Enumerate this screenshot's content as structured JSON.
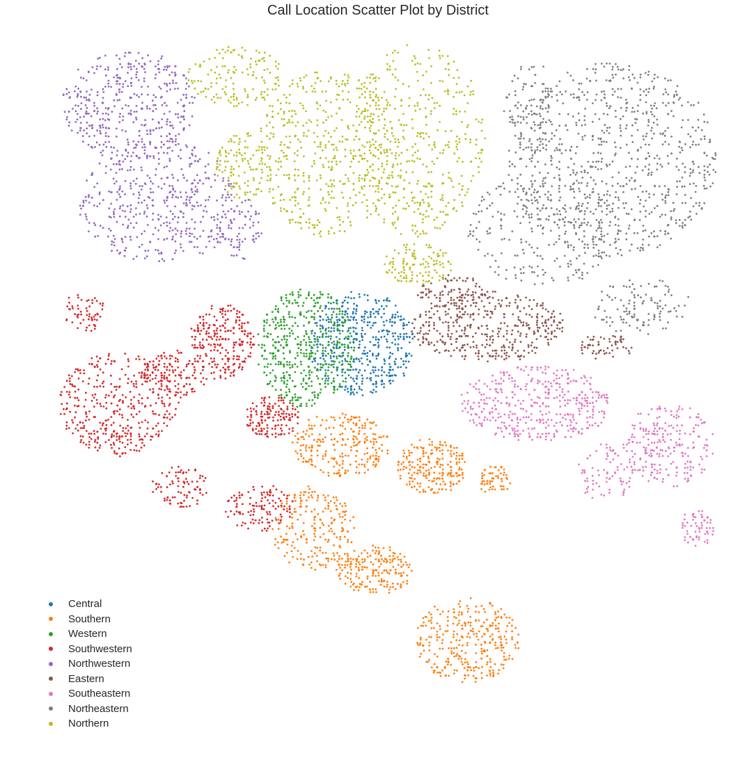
{
  "chart_data": {
    "type": "scatter",
    "title": "Call Location Scatter Plot by District",
    "xlabel": "",
    "ylabel": "",
    "axes_visible": false,
    "grid": false,
    "legend_position": "bottom-left",
    "series": [
      {
        "name": "Central",
        "color": "#1f77b4"
      },
      {
        "name": "Southern",
        "color": "#ff7f0e"
      },
      {
        "name": "Western",
        "color": "#2ca02c"
      },
      {
        "name": "Southwestern",
        "color": "#d62728"
      },
      {
        "name": "Northwestern",
        "color": "#9467bd"
      },
      {
        "name": "Eastern",
        "color": "#8c564b"
      },
      {
        "name": "Southeastern",
        "color": "#e377c2"
      },
      {
        "name": "Northeastern",
        "color": "#7f7f7f"
      },
      {
        "name": "Northern",
        "color": "#bcbd22"
      }
    ]
  }
}
